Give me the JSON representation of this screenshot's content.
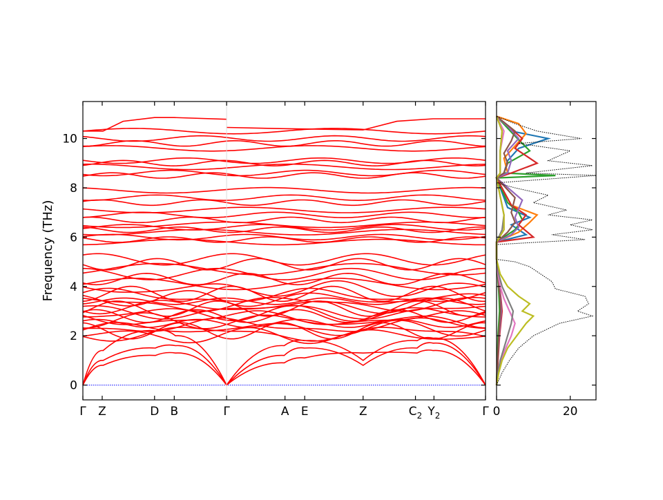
{
  "chart_data": [
    {
      "type": "line",
      "ylabel": "Frequency (THz)",
      "ylim": [
        -0.6,
        11.5
      ],
      "yticks": [
        0,
        2,
        4,
        6,
        8,
        10
      ],
      "x_kpoints": [
        {
          "label": "Γ",
          "sub": "",
          "x": 0.0
        },
        {
          "label": "Z",
          "sub": "",
          "x": 0.048
        },
        {
          "label": "D",
          "sub": "",
          "x": 0.178
        },
        {
          "label": "B",
          "sub": "",
          "x": 0.227
        },
        {
          "label": "Γ",
          "sub": "",
          "x": 0.357
        },
        {
          "label": "A",
          "sub": "",
          "x": 0.502
        },
        {
          "label": "E",
          "sub": "",
          "x": 0.551
        },
        {
          "label": "Z",
          "sub": "",
          "x": 0.696
        },
        {
          "label": "C",
          "sub": "2",
          "x": 0.826
        },
        {
          "label": "Y",
          "sub": "2",
          "x": 0.872
        },
        {
          "label": "Γ",
          "sub": "",
          "x": 1.0
        }
      ],
      "series_color": "#ff0000",
      "zero_line_color": "#0000ff",
      "acoustic_branches": [
        {
          "segments": [
            [
              0,
              0
            ],
            [
              0.05,
              1.4
            ],
            [
              0.18,
              2.2
            ],
            [
              0.23,
              2.0
            ],
            [
              0.357,
              0
            ]
          ]
        },
        {
          "segments": [
            [
              0,
              0
            ],
            [
              0.05,
              1.0
            ],
            [
              0.18,
              1.5
            ],
            [
              0.23,
              1.6
            ],
            [
              0.357,
              0
            ]
          ]
        },
        {
          "segments": [
            [
              0,
              0
            ],
            [
              0.05,
              0.8
            ],
            [
              0.18,
              1.2
            ],
            [
              0.23,
              1.3
            ],
            [
              0.357,
              0
            ]
          ]
        },
        {
          "segments": [
            [
              0.357,
              0
            ],
            [
              0.5,
              1.6
            ],
            [
              0.55,
              1.8
            ],
            [
              0.696,
              1.0
            ],
            [
              0.83,
              1.8
            ],
            [
              0.87,
              1.9
            ],
            [
              1.0,
              0
            ]
          ]
        },
        {
          "segments": [
            [
              0.357,
              0
            ],
            [
              0.5,
              1.2
            ],
            [
              0.55,
              1.5
            ],
            [
              0.696,
              0.8
            ],
            [
              0.83,
              1.5
            ],
            [
              0.87,
              1.7
            ],
            [
              1.0,
              0
            ]
          ]
        },
        {
          "segments": [
            [
              0.357,
              0
            ],
            [
              0.5,
              0.9
            ],
            [
              0.55,
              1.1
            ],
            [
              0.696,
              1.3
            ],
            [
              0.83,
              1.3
            ],
            [
              0.87,
              1.4
            ],
            [
              1.0,
              0
            ]
          ]
        }
      ],
      "optical_bands_thz": [
        10.3,
        10.0,
        9.8,
        9.6,
        9.1,
        9.0,
        8.85,
        8.6,
        8.5,
        7.9,
        7.6,
        7.4,
        7.1,
        6.9,
        6.7,
        6.5,
        6.4,
        6.3,
        6.2,
        6.0,
        5.9,
        5.8,
        5.1,
        4.9,
        4.7,
        4.5,
        4.3,
        4.1,
        3.9,
        3.7,
        3.6,
        3.5,
        3.4,
        3.3,
        3.2,
        3.1,
        3.0,
        2.9,
        2.8,
        2.7,
        2.6,
        2.5,
        2.4,
        2.3,
        2.2,
        2.1,
        2.0
      ],
      "top_band_thz": 10.85
    },
    {
      "type": "line",
      "title": "",
      "xlim": [
        0,
        27
      ],
      "xticks": [
        0,
        20
      ],
      "ylim": [
        -0.6,
        11.5
      ],
      "total_dos": {
        "name": "",
        "color": "#000000",
        "freq": [
          0.0,
          0.5,
          1.0,
          1.5,
          2.0,
          2.5,
          2.8,
          3.0,
          3.3,
          3.6,
          3.9,
          4.2,
          4.5,
          4.8,
          5.0,
          5.1,
          5.7,
          5.9,
          6.1,
          6.3,
          6.5,
          6.7,
          6.9,
          7.1,
          7.4,
          7.7,
          8.0,
          8.2,
          8.5,
          8.6,
          8.9,
          9.1,
          9.5,
          9.8,
          10.0,
          10.3,
          10.6,
          10.9
        ],
        "dos": [
          0.0,
          1.5,
          3.5,
          6.0,
          10.0,
          17.0,
          26.0,
          22.0,
          25.0,
          24.0,
          16.0,
          15.0,
          12.0,
          9.0,
          5.0,
          0.0,
          0.0,
          24.0,
          15.0,
          26.0,
          20.0,
          26.0,
          14.0,
          19.0,
          10.0,
          14.0,
          5.0,
          0.0,
          27.0,
          8.0,
          26.0,
          14.0,
          20.0,
          6.0,
          23.0,
          11.0,
          5.0,
          0.0
        ]
      },
      "partial_dos": [
        {
          "color": "#1f77b4",
          "freq": [
            0,
            1,
            2,
            3,
            3.5,
            4,
            4.5,
            5.1,
            5.8,
            6.1,
            6.5,
            6.8,
            7.2,
            8.4,
            8.6,
            9.1,
            9.6,
            10.0,
            10.3,
            10.9
          ],
          "dos": [
            0,
            0.3,
            0.6,
            1.2,
            1.0,
            0.5,
            0.4,
            0,
            0,
            8,
            4,
            9,
            3,
            0,
            2,
            3,
            6,
            14,
            4,
            0
          ]
        },
        {
          "color": "#ff7f0e",
          "freq": [
            0,
            1,
            2,
            3,
            3.5,
            4,
            4.5,
            5.1,
            5.8,
            6.2,
            6.6,
            6.9,
            7.3,
            8.4,
            8.6,
            9.2,
            9.7,
            10.2,
            10.6,
            10.9
          ],
          "dos": [
            0,
            0.2,
            0.5,
            1.0,
            0.9,
            0.6,
            0.3,
            0,
            0,
            6,
            9,
            11,
            4,
            0,
            3,
            2,
            5,
            8,
            6,
            0
          ]
        },
        {
          "color": "#2ca02c",
          "freq": [
            0,
            1,
            2,
            3,
            3.5,
            4,
            4.5,
            5.1,
            5.8,
            6.3,
            6.7,
            7.0,
            7.4,
            8.4,
            8.5,
            8.6,
            9.0,
            9.5,
            10.1,
            10.9
          ],
          "dos": [
            0,
            0.2,
            0.4,
            0.8,
            0.7,
            0.5,
            0.3,
            0,
            0,
            5,
            7,
            6,
            3,
            0,
            16,
            2,
            3,
            9,
            5,
            0
          ]
        },
        {
          "color": "#d62728",
          "freq": [
            0,
            1,
            2,
            3,
            3.5,
            4,
            4.5,
            5.1,
            5.8,
            6.0,
            6.5,
            6.9,
            7.3,
            8.4,
            8.6,
            9.0,
            9.6,
            10.0,
            10.4,
            10.9
          ],
          "dos": [
            0,
            0.4,
            0.8,
            1.5,
            1.2,
            0.8,
            0.5,
            0,
            0,
            10,
            6,
            8,
            4,
            0,
            4,
            11,
            5,
            7,
            4,
            0
          ]
        },
        {
          "color": "#9467bd",
          "freq": [
            0,
            1,
            2,
            3,
            3.5,
            4,
            4.5,
            5.1,
            5.8,
            6.1,
            6.4,
            6.8,
            7.5,
            8.4,
            8.6,
            9.1,
            9.5,
            10.0,
            10.5,
            10.9
          ],
          "dos": [
            0,
            0.3,
            0.7,
            1.3,
            1.1,
            0.7,
            0.4,
            0,
            0,
            4,
            6,
            5,
            7,
            0,
            3,
            4,
            3,
            6,
            3,
            0
          ]
        },
        {
          "color": "#8c564b",
          "freq": [
            0,
            1,
            2,
            3,
            3.5,
            4,
            4.5,
            5.1,
            5.8,
            6.2,
            6.6,
            7.0,
            7.6,
            8.4,
            8.6,
            9.0,
            9.4,
            9.9,
            10.3,
            10.9
          ],
          "dos": [
            0,
            0.3,
            0.6,
            1.1,
            1.0,
            0.6,
            0.4,
            0,
            0,
            3,
            5,
            4,
            5,
            0,
            2,
            3,
            2,
            4,
            5,
            0
          ]
        },
        {
          "color": "#e377c2",
          "freq": [
            0,
            0.5,
            1,
            1.5,
            2,
            2.5,
            3,
            3.5,
            4,
            4.5,
            5.1,
            5.8,
            6.3,
            6.9,
            8.4,
            8.6,
            9.5,
            10.3,
            10.9
          ],
          "dos": [
            0,
            0.5,
            1.2,
            2.5,
            4.0,
            5.0,
            3.5,
            2.0,
            1.0,
            0.4,
            0,
            0,
            2,
            2,
            0,
            1,
            1,
            2,
            0
          ]
        },
        {
          "color": "#7f7f7f",
          "freq": [
            0,
            0.5,
            1,
            1.5,
            2,
            2.5,
            3,
            3.5,
            4,
            4.5,
            5.1,
            5.8,
            6.3,
            6.9,
            8.4,
            8.6,
            9.5,
            10.3,
            10.9
          ],
          "dos": [
            0,
            0.4,
            1.0,
            2.0,
            3.0,
            4.0,
            4.5,
            3.0,
            1.5,
            0.6,
            0,
            0,
            1.5,
            2,
            0,
            1,
            1,
            1.5,
            0
          ]
        },
        {
          "color": "#bcbd22",
          "freq": [
            0,
            0.5,
            1,
            1.5,
            2,
            2.5,
            2.8,
            3.0,
            3.3,
            3.6,
            4,
            4.5,
            5.1,
            5.8,
            6.3,
            6.9,
            8.4,
            8.6,
            9.5,
            10.3,
            10.9
          ],
          "dos": [
            0,
            0.6,
            1.5,
            3.0,
            5.5,
            8.0,
            10.0,
            7.0,
            9.0,
            6.0,
            3.0,
            1.0,
            0,
            0,
            2,
            2,
            0,
            1,
            1,
            1.5,
            0
          ]
        }
      ]
    }
  ]
}
